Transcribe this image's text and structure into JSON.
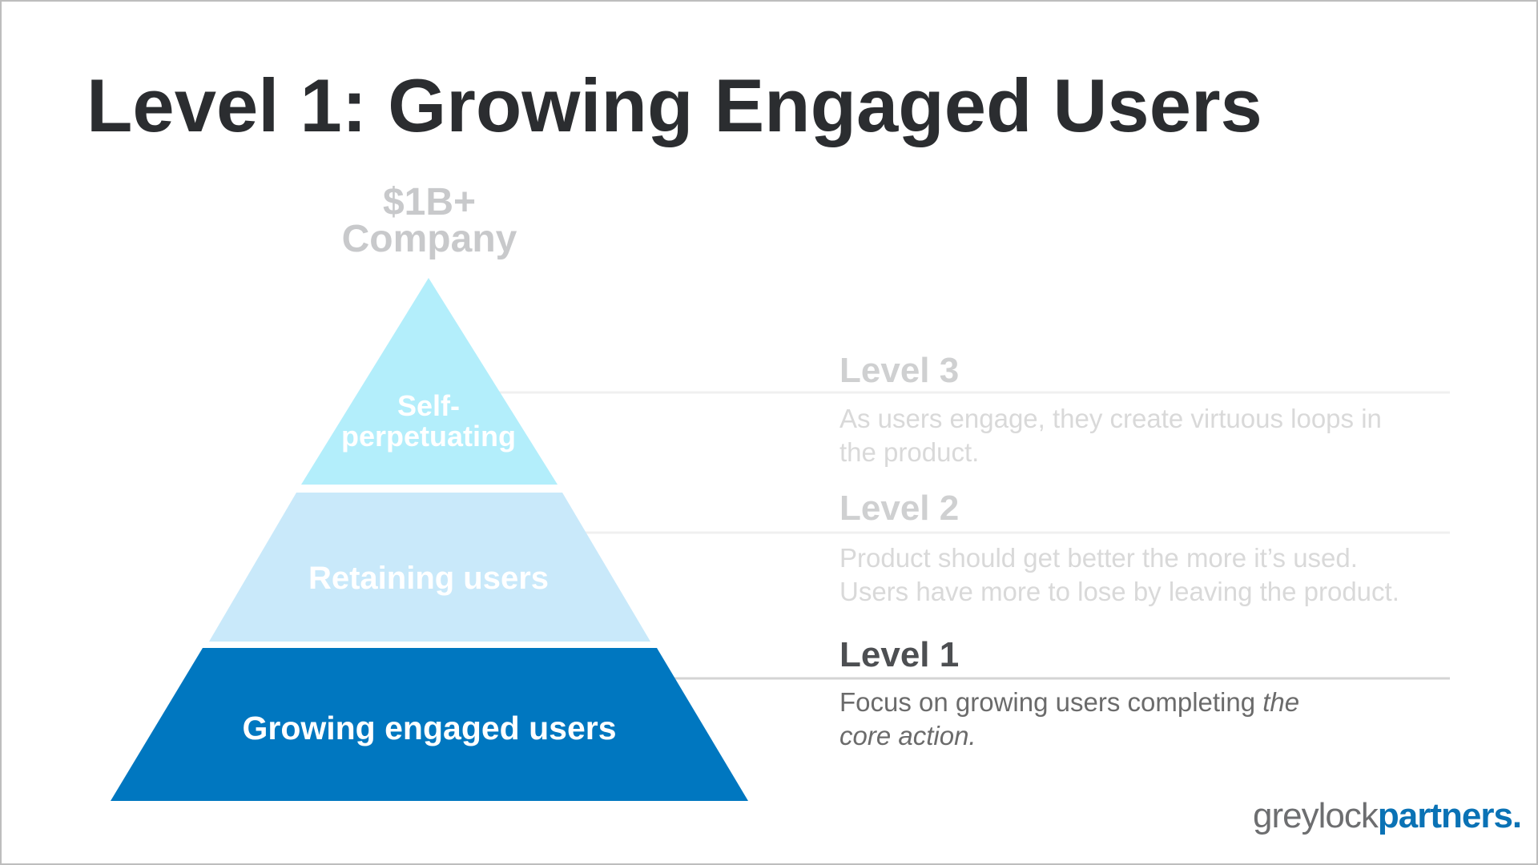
{
  "title": "Level 1: Growing Engaged Users",
  "apex_label": {
    "line1": "$1B+",
    "line2": "Company"
  },
  "pyramid": {
    "tiers": [
      {
        "line1": "Self-",
        "line2": "perpetuating",
        "color": "#b3eefb"
      },
      {
        "label": "Retaining users",
        "color": "#c9e9fa"
      },
      {
        "label": "Growing engaged users",
        "color": "#0077c0"
      }
    ]
  },
  "levels": [
    {
      "heading": "Level 3",
      "desc_line1": "As users engage, they create virtuous loops in",
      "desc_line2": "the product.",
      "state": "inactive"
    },
    {
      "heading": "Level 2",
      "desc_line1": "Product should get better the more it’s used.",
      "desc_line2": "Users have more to lose by leaving the product.",
      "state": "inactive"
    },
    {
      "heading": "Level 1",
      "desc_plain": "Focus on growing users completing ",
      "desc_italic1": "the",
      "desc_italic2": "core action.",
      "state": "active"
    }
  ],
  "logo": {
    "part1": "greylock",
    "part2": "partners.",
    "color1": "#6d6e70",
    "color2": "#0a72b5"
  }
}
